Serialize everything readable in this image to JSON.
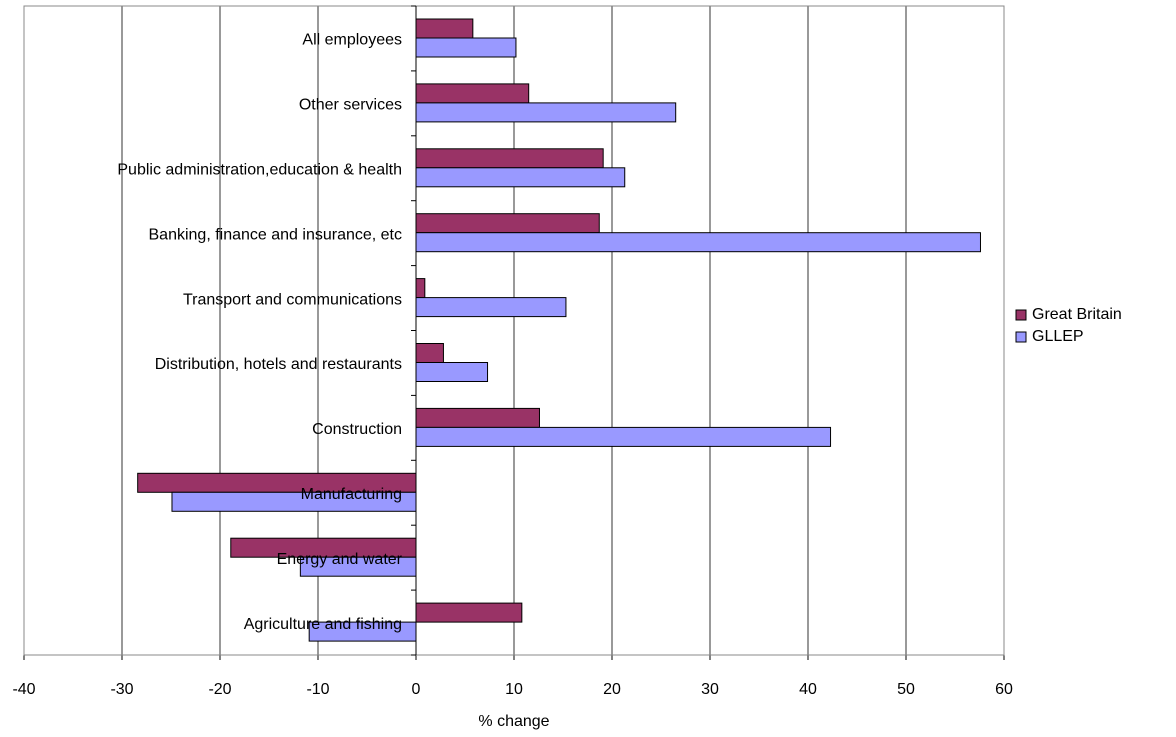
{
  "chart_data": {
    "type": "barh",
    "xlabel": "% change",
    "categories": [
      "All employees",
      "Other services",
      "Public administration,education & health",
      "Banking, finance and insurance, etc",
      "Transport and communications",
      "Distribution, hotels and restaurants",
      "Construction",
      "Manufacturing",
      "Energy and water",
      "Agriculture and fishing"
    ],
    "series": [
      {
        "name": "Great Britain",
        "color": "#993366",
        "values": [
          5.8,
          11.5,
          19.1,
          18.7,
          0.9,
          2.8,
          12.6,
          -28.4,
          -18.9,
          10.8
        ]
      },
      {
        "name": "GLLEP",
        "color": "#9999ff",
        "values": [
          10.2,
          26.5,
          21.3,
          57.6,
          15.3,
          7.3,
          42.3,
          -24.9,
          -11.8,
          -10.9
        ]
      }
    ],
    "xlim": [
      -40,
      60
    ],
    "xticks": [
      -40,
      -30,
      -20,
      -10,
      0,
      10,
      20,
      30,
      40,
      50,
      60
    ],
    "grid": true,
    "legend": "right"
  }
}
